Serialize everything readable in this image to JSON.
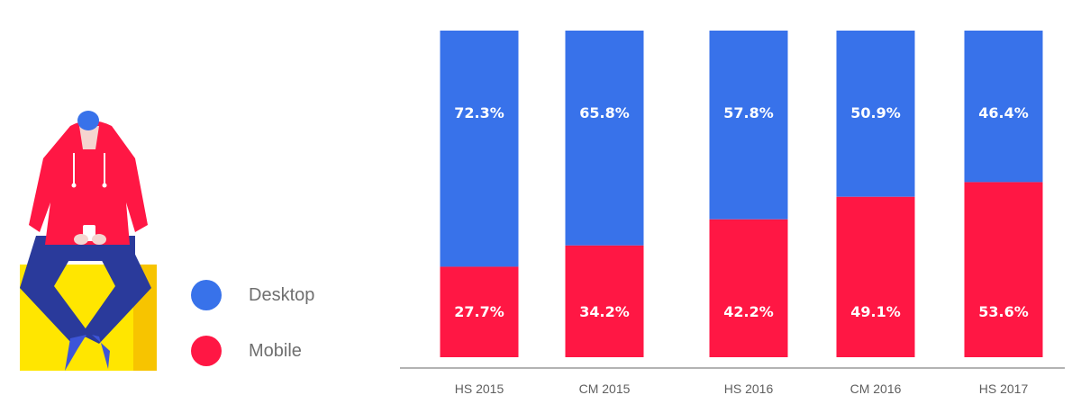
{
  "legend": {
    "items": [
      {
        "label": "Desktop",
        "color": "#3872EA"
      },
      {
        "label": "Mobile",
        "color": "#FF1744"
      }
    ]
  },
  "illustration": {
    "icon": "person-sitting-with-phone-illustration",
    "colors": {
      "hoodie": "#FF1744",
      "pants": "#2A3A9B",
      "cap": "#3872EA",
      "box": "#FFE600",
      "box_side": "#F7C400",
      "shoes": "#3D55D8"
    }
  },
  "chart_data": {
    "type": "bar",
    "stacked": true,
    "categories": [
      "HS 2015",
      "CM 2015",
      "HS 2016",
      "CM 2016",
      "HS 2017"
    ],
    "series": [
      {
        "name": "Desktop",
        "color": "#3872EA",
        "values": [
          72.3,
          65.8,
          57.8,
          50.9,
          46.4
        ],
        "labels": [
          "72.3%",
          "65.8%",
          "57.8%",
          "50.9%",
          "46.4%"
        ]
      },
      {
        "name": "Mobile",
        "color": "#FF1744",
        "values": [
          27.7,
          34.2,
          42.2,
          49.1,
          53.6
        ],
        "labels": [
          "27.7%",
          "34.2%",
          "42.2%",
          "49.1%",
          "53.6%"
        ]
      }
    ],
    "ylim": [
      0,
      100
    ],
    "grid": false,
    "legend_position": "left",
    "title": "",
    "xlabel": "",
    "ylabel": ""
  }
}
